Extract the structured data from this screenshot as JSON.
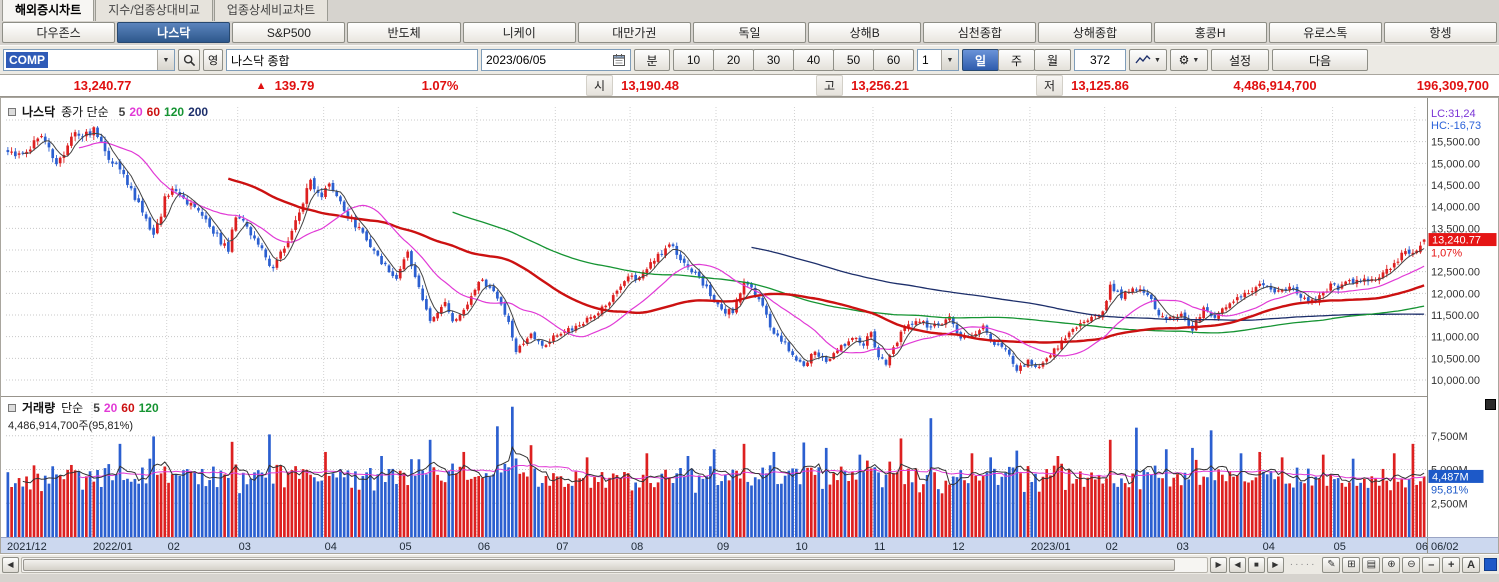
{
  "tabs": {
    "items": [
      {
        "label": "해외증시차트",
        "active": true
      },
      {
        "label": "지수/업종상대비교",
        "active": false
      },
      {
        "label": "업종상세비교차트",
        "active": false
      }
    ]
  },
  "markets": {
    "items": [
      "다우존스",
      "나스닥",
      "S&P500",
      "반도체",
      "니케이",
      "대만가권",
      "독일",
      "상해B",
      "심천종합",
      "상해종합",
      "홍콩H",
      "유로스톡",
      "항셍"
    ],
    "active_index": 1
  },
  "toolbar": {
    "symbol_code": "COMP",
    "eng_button": "영",
    "symbol_name": "나스닥 종합",
    "date": "2023/06/05",
    "minute_button": "분",
    "minute_options": [
      "10",
      "20",
      "30",
      "40",
      "50",
      "60"
    ],
    "count_value": "1",
    "period_buttons": [
      {
        "label": "일",
        "active": true
      },
      {
        "label": "주",
        "active": false
      },
      {
        "label": "월",
        "active": false
      }
    ],
    "bars_value": "372",
    "settings_label": "설정",
    "next_label": "다음"
  },
  "quote": {
    "price": "13,240.77",
    "direction": "▲",
    "change": "139.79",
    "change_pct": "1.07%",
    "open_label": "시",
    "open": "13,190.48",
    "high_label": "고",
    "high": "13,256.21",
    "low_label": "저",
    "low": "13,125.86",
    "volume": "4,486,914,700",
    "value": "196,309,700"
  },
  "price_panel": {
    "legend_title": "나스닥",
    "legend_type": "종가 단순",
    "ma_periods": [
      "5",
      "20",
      "60",
      "120",
      "200"
    ],
    "right_axis_top": [
      "LC:31,24",
      "HC:-16,73"
    ],
    "price_badge": "13,240.77",
    "price_badge_pct": "1,07%",
    "axis_labels": [
      "15,500.00",
      "15,000.00",
      "14,500.00",
      "14,000.00",
      "13,500.00",
      "12,500.00",
      "12,000.00",
      "11,500.00",
      "11,000.00",
      "10,500.00",
      "10,000.00"
    ]
  },
  "volume_panel": {
    "legend_title": "거래량",
    "legend_type": "단순",
    "ma_periods": [
      "5",
      "20",
      "60",
      "120"
    ],
    "legend_value": "4,486,914,700주(95,81%)",
    "axis_labels": [
      "7,500M",
      "5,000M",
      "2,500M"
    ],
    "volume_badge": "4,487M",
    "volume_badge_pct": "95,81%"
  },
  "xaxis": {
    "right_corner": "06/02"
  },
  "statusbar": {
    "scroll_left": "◀",
    "scroll_right": "▶",
    "step_back": "◀",
    "stop": "■",
    "step_forward": "▶",
    "grip": "·····",
    "draw": "✎",
    "grid": "⊞",
    "panel": "▤",
    "zoom_in_tool": "⊕",
    "zoom_out_tool": "⊖",
    "minus": "–",
    "plus": "+",
    "font": "A"
  },
  "chart_data": {
    "type": "candlestick",
    "series_name": "나스닥 종합 (COMP) 일봉",
    "seed": 11,
    "up_color": "#dd2020",
    "down_color": "#2b5fd0",
    "ma_colors": {
      "5": "#444444",
      "20": "#e13ad6",
      "60": "#cc1111",
      "120": "#169433",
      "200": "#1d2f6b"
    },
    "y_axis": {
      "min": 9700,
      "max": 16300,
      "gridline_step": 500
    },
    "volume_axis": {
      "min": 0,
      "max": 10000,
      "unit": "M",
      "gridlines": [
        2500,
        5000,
        7500
      ]
    },
    "months": [
      {
        "label": "2021/12",
        "days": 23
      },
      {
        "label": "2022/01",
        "days": 20
      },
      {
        "label": "02",
        "days": 19
      },
      {
        "label": "03",
        "days": 23
      },
      {
        "label": "04",
        "days": 20
      },
      {
        "label": "05",
        "days": 21
      },
      {
        "label": "06",
        "days": 21
      },
      {
        "label": "07",
        "days": 20
      },
      {
        "label": "08",
        "days": 23
      },
      {
        "label": "09",
        "days": 21
      },
      {
        "label": "10",
        "days": 21
      },
      {
        "label": "11",
        "days": 21
      },
      {
        "label": "12",
        "days": 21
      },
      {
        "label": "2023/01",
        "days": 20
      },
      {
        "label": "02",
        "days": 19
      },
      {
        "label": "03",
        "days": 23
      },
      {
        "label": "04",
        "days": 19
      },
      {
        "label": "05",
        "days": 22
      },
      {
        "label": "06",
        "days": 3
      }
    ],
    "close_anchors": [
      [
        0,
        15260
      ],
      [
        4,
        15225
      ],
      [
        9,
        15630
      ],
      [
        13,
        14980
      ],
      [
        18,
        15720
      ],
      [
        22,
        15645
      ],
      [
        23,
        15833
      ],
      [
        27,
        15080
      ],
      [
        31,
        14750
      ],
      [
        39,
        13353
      ],
      [
        41,
        13770
      ],
      [
        42,
        14240
      ],
      [
        44,
        14418
      ],
      [
        47,
        14194
      ],
      [
        52,
        13790
      ],
      [
        59,
        12960
      ],
      [
        60,
        13473
      ],
      [
        61,
        13751
      ],
      [
        64,
        13538
      ],
      [
        69,
        12830
      ],
      [
        71,
        12581
      ],
      [
        76,
        13440
      ],
      [
        81,
        14620
      ],
      [
        84,
        14220
      ],
      [
        86,
        14532
      ],
      [
        90,
        13900
      ],
      [
        95,
        13400
      ],
      [
        99,
        12872
      ],
      [
        102,
        12490
      ],
      [
        104,
        12334
      ],
      [
        107,
        12964
      ],
      [
        110,
        12145
      ],
      [
        113,
        11364
      ],
      [
        117,
        11800
      ],
      [
        119,
        11354
      ],
      [
        123,
        11740
      ],
      [
        125,
        12081
      ],
      [
        127,
        12316
      ],
      [
        131,
        11880
      ],
      [
        134,
        11340
      ],
      [
        136,
        10646
      ],
      [
        140,
        11070
      ],
      [
        143,
        10790
      ],
      [
        146,
        11028
      ],
      [
        149,
        11128
      ],
      [
        152,
        11250
      ],
      [
        156,
        11452
      ],
      [
        160,
        11713
      ],
      [
        163,
        12060
      ],
      [
        166,
        12390
      ],
      [
        169,
        12369
      ],
      [
        172,
        12720
      ],
      [
        177,
        13128
      ],
      [
        181,
        12705
      ],
      [
        185,
        12381
      ],
      [
        189,
        11816
      ],
      [
        191,
        11630
      ],
      [
        194,
        11545
      ],
      [
        197,
        12266
      ],
      [
        201,
        11862
      ],
      [
        205,
        11067
      ],
      [
        208,
        10868
      ],
      [
        210,
        10576
      ],
      [
        213,
        10325
      ],
      [
        216,
        10652
      ],
      [
        219,
        10417
      ],
      [
        222,
        10681
      ],
      [
        226,
        10970
      ],
      [
        229,
        10792
      ],
      [
        231,
        11102
      ],
      [
        233,
        10525
      ],
      [
        235,
        10353
      ],
      [
        239,
        11114
      ],
      [
        243,
        11358
      ],
      [
        247,
        11226
      ],
      [
        250,
        11285
      ],
      [
        252,
        11468
      ],
      [
        255,
        10958
      ],
      [
        258,
        11015
      ],
      [
        261,
        11257
      ],
      [
        264,
        10810
      ],
      [
        267,
        10705
      ],
      [
        270,
        10213
      ],
      [
        273,
        10466
      ],
      [
        276,
        10305
      ],
      [
        279,
        10569
      ],
      [
        283,
        10957
      ],
      [
        287,
        11313
      ],
      [
        291,
        11508
      ],
      [
        293,
        11584
      ],
      [
        295,
        12200
      ],
      [
        298,
        11887
      ],
      [
        301,
        12113
      ],
      [
        305,
        11960
      ],
      [
        308,
        11492
      ],
      [
        310,
        11394
      ],
      [
        312,
        11455
      ],
      [
        314,
        11530
      ],
      [
        317,
        11138
      ],
      [
        320,
        11675
      ],
      [
        323,
        11434
      ],
      [
        327,
        11768
      ],
      [
        331,
        12013
      ],
      [
        335,
        12221
      ],
      [
        338,
        12087
      ],
      [
        341,
        12084
      ],
      [
        343,
        12153
      ],
      [
        346,
        11897
      ],
      [
        350,
        11799
      ],
      [
        354,
        12226
      ],
      [
        356,
        12080
      ],
      [
        359,
        12306
      ],
      [
        362,
        12284
      ],
      [
        365,
        12328
      ],
      [
        368,
        12484
      ],
      [
        371,
        12698
      ],
      [
        374,
        12975
      ],
      [
        376,
        12935
      ],
      [
        377,
        12985
      ],
      [
        378,
        13100.98
      ],
      [
        379,
        13240.77
      ]
    ],
    "volume_spikes": {
      "30": 6900,
      "39": 7450,
      "60": 7050,
      "70": 7600,
      "85": 6300,
      "100": 6000,
      "113": 7200,
      "122": 6300,
      "131": 8200,
      "135": 9650,
      "140": 6800,
      "155": 5900,
      "171": 6200,
      "182": 6000,
      "189": 6500,
      "197": 6900,
      "205": 6300,
      "213": 7000,
      "219": 6600,
      "228": 6100,
      "239": 7300,
      "247": 8800,
      "258": 6200,
      "263": 5900,
      "270": 6400,
      "281": 6000,
      "295": 7200,
      "302": 8100,
      "310": 6500,
      "317": 6600,
      "322": 7900,
      "330": 6200,
      "335": 6300,
      "341": 5900,
      "352": 6100,
      "360": 5800,
      "371": 6200,
      "376": 6900
    },
    "last": {
      "open": 13190.48,
      "high": 13256.21,
      "low": 13125.86,
      "close": 13240.77,
      "change": 139.79,
      "change_pct": 1.07,
      "volume_m": 4487
    }
  }
}
